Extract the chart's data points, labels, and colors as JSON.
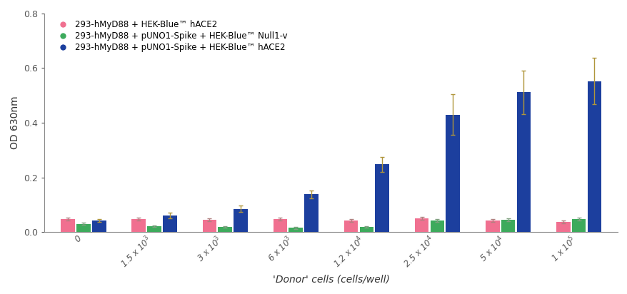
{
  "xlabel": "'Donor' cells (cells/well)",
  "ylabel": "OD 630nm",
  "ylim": [
    0,
    0.8
  ],
  "yticks": [
    0,
    0.2,
    0.4,
    0.6,
    0.8
  ],
  "categories": [
    "0",
    "1.5 x 10$^3$",
    "3 x 10$^3$",
    "6 x 10$^3$",
    "1.2 x 10$^4$",
    "2.5 x 10$^4$",
    "5 x 10$^4$",
    "1 x 10$^5$"
  ],
  "series": [
    {
      "label": "293-hMyD88 + HEK-Blue™ hACE2",
      "color": "#F07090",
      "values": [
        0.048,
        0.048,
        0.045,
        0.048,
        0.042,
        0.05,
        0.042,
        0.038
      ],
      "errors": [
        0.006,
        0.005,
        0.005,
        0.006,
        0.005,
        0.006,
        0.005,
        0.005
      ]
    },
    {
      "label": "293-hMyD88 + pUNO1-Spike + HEK-Blue™ Null1-v",
      "color": "#3DAA5C",
      "values": [
        0.03,
        0.022,
        0.018,
        0.015,
        0.018,
        0.042,
        0.045,
        0.048
      ],
      "errors": [
        0.004,
        0.003,
        0.003,
        0.003,
        0.003,
        0.005,
        0.005,
        0.005
      ]
    },
    {
      "label": "293-hMyD88 + pUNO1-Spike + HEK-Blue™ hACE2",
      "color": "#1C3F9E",
      "values": [
        0.042,
        0.06,
        0.085,
        0.138,
        0.248,
        0.43,
        0.512,
        0.552
      ],
      "errors": [
        0.005,
        0.01,
        0.012,
        0.015,
        0.028,
        0.075,
        0.08,
        0.085
      ]
    }
  ],
  "bar_width": 0.22,
  "legend_marker_size": 7,
  "axis_color": "#888888",
  "tick_color": "#555555",
  "label_color": "#333333",
  "error_color_pink": "#b08080",
  "error_color_green": "#80a080",
  "error_color_blue": "#b0963c"
}
